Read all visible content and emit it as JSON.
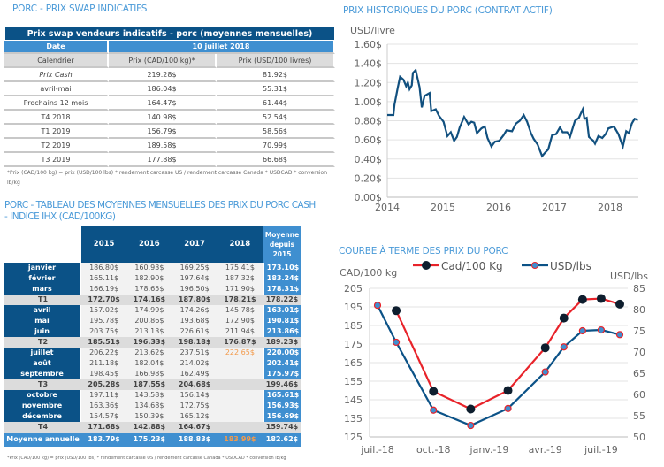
{
  "swap": {
    "heading": "PORC - PRIX SWAP INDICATIFS",
    "title": "Prix swap vendeurs indicatifs - porc (moyennes mensuelles)",
    "date_label": "Date",
    "date_value": "10 juillet 2018",
    "columns": [
      "Calendrier",
      "Prix (CAD/100 kg)*",
      "Prix (USD/100 livres)"
    ],
    "rows": [
      [
        "Prix Cash",
        "219.28$",
        "81.92$"
      ],
      [
        "avril-mai",
        "186.04$",
        "55.31$"
      ],
      [
        "Prochains 12 mois",
        "164.47$",
        "61.44$"
      ],
      [
        "T4 2018",
        "140.98$",
        "52.54$"
      ],
      [
        "T1 2019",
        "156.79$",
        "58.56$"
      ],
      [
        "T2 2019",
        "189.58$",
        "70.99$"
      ],
      [
        "T3 2019",
        "177.88$",
        "66.68$"
      ]
    ],
    "footnote": "*Prix (CAD/100 kg) = prix (USD/100 lbs) * rendement carcasse US / rendement carcasse Canada * USDCAD * conversion lb/kg"
  },
  "monthly": {
    "heading": "PORC - TABLEAU DES MOYENNES MENSUELLES DES PRIX DU PORC CASH - INDICE IHX (CAD/100KG)",
    "columns": [
      "2015",
      "2016",
      "2017",
      "2018",
      "Moyenne depuis 2015"
    ],
    "rows": [
      {
        "label": "janvier",
        "values": [
          "186.80$",
          "160.93$",
          "169.25$",
          "175.41$",
          "173.10$"
        ]
      },
      {
        "label": "février",
        "values": [
          "165.11$",
          "182.90$",
          "197.64$",
          "187.32$",
          "183.24$"
        ]
      },
      {
        "label": "mars",
        "values": [
          "166.19$",
          "178.65$",
          "196.50$",
          "171.90$",
          "178.31$"
        ]
      },
      {
        "label": "T1",
        "quarter": true,
        "values": [
          "172.70$",
          "174.16$",
          "187.80$",
          "178.21$",
          "178.22$"
        ]
      },
      {
        "label": "avril",
        "values": [
          "157.02$",
          "174.99$",
          "174.26$",
          "145.78$",
          "163.01$"
        ]
      },
      {
        "label": "mai",
        "values": [
          "195.78$",
          "200.86$",
          "193.68$",
          "172.90$",
          "190.81$"
        ]
      },
      {
        "label": "juin",
        "values": [
          "203.75$",
          "213.13$",
          "226.61$",
          "211.94$",
          "213.86$"
        ]
      },
      {
        "label": "T2",
        "quarter": true,
        "values": [
          "185.51$",
          "196.33$",
          "198.18$",
          "176.87$",
          "189.23$"
        ]
      },
      {
        "label": "juillet",
        "values": [
          "206.22$",
          "213.62$",
          "237.51$",
          "222.65$",
          "220.00$"
        ],
        "highlight": 3
      },
      {
        "label": "août",
        "values": [
          "211.18$",
          "182.04$",
          "214.02$",
          "",
          "202.41$"
        ]
      },
      {
        "label": "septembre",
        "values": [
          "198.45$",
          "166.98$",
          "162.49$",
          "",
          "175.97$"
        ]
      },
      {
        "label": "T3",
        "quarter": true,
        "values": [
          "205.28$",
          "187.55$",
          "204.68$",
          "",
          "199.46$"
        ]
      },
      {
        "label": "octobre",
        "values": [
          "197.11$",
          "143.58$",
          "156.14$",
          "",
          "165.61$"
        ]
      },
      {
        "label": "novembre",
        "values": [
          "163.36$",
          "134.68$",
          "172.75$",
          "",
          "156.93$"
        ]
      },
      {
        "label": "décembre",
        "values": [
          "154.57$",
          "150.39$",
          "165.12$",
          "",
          "156.69$"
        ]
      },
      {
        "label": "T4",
        "quarter": true,
        "values": [
          "171.68$",
          "142.88$",
          "164.67$",
          "",
          "159.74$"
        ]
      },
      {
        "label": "Moyenne annuelle",
        "annual": true,
        "values": [
          "183.79$",
          "175.23$",
          "188.83$",
          "183.99$",
          "182.62$"
        ],
        "highlight": 3
      }
    ],
    "footnote": "*Prix (CAD/100 kg) = prix (USD/100 lbs) * rendement carcasse US / rendement carcasse Canada * USDCAD * conversion lb/kg"
  },
  "colors": {
    "dark_blue": "#0b5287",
    "light_blue": "#3f8fd0",
    "orange": "#f39a4b",
    "red": "#e8232a"
  },
  "chart_data": [
    {
      "type": "line",
      "title": "PRIX HISTORIQUES DU PORC (CONTRAT ACTIF)",
      "ylabel": "USD/livre",
      "ylim": [
        0,
        1.6
      ],
      "xlim": [
        2014,
        2018.5
      ],
      "yticks": [
        "0.00$",
        "0.20$",
        "0.40$",
        "0.60$",
        "0.80$",
        "1.00$",
        "1.20$",
        "1.40$",
        "1.60$"
      ],
      "xticks": [
        "2014",
        "2015",
        "2016",
        "2017",
        "2018"
      ],
      "grid": true,
      "x": [
        2014.0,
        2014.11,
        2014.13,
        2014.19,
        2014.23,
        2014.29,
        2014.34,
        2014.37,
        2014.4,
        2014.44,
        2014.46,
        2014.51,
        2014.58,
        2014.62,
        2014.67,
        2014.76,
        2014.79,
        2014.87,
        2014.93,
        2015.01,
        2015.08,
        2015.14,
        2015.2,
        2015.25,
        2015.3,
        2015.38,
        2015.46,
        2015.51,
        2015.56,
        2015.61,
        2015.69,
        2015.75,
        2015.8,
        2015.87,
        2015.93,
        2016.01,
        2016.09,
        2016.14,
        2016.24,
        2016.31,
        2016.38,
        2016.45,
        2016.51,
        2016.58,
        2016.63,
        2016.7,
        2016.78,
        2016.84,
        2016.89,
        2016.96,
        2017.03,
        2017.1,
        2017.15,
        2017.23,
        2017.28,
        2017.37,
        2017.44,
        2017.51,
        2017.54,
        2017.58,
        2017.62,
        2017.7,
        2017.73,
        2017.79,
        2017.86,
        2017.92,
        2017.97,
        2018.07,
        2018.15,
        2018.23,
        2018.29,
        2018.34,
        2018.39,
        2018.44,
        2018.5
      ],
      "y": [
        0.86,
        0.86,
        0.97,
        1.15,
        1.26,
        1.23,
        1.16,
        1.2,
        1.13,
        1.17,
        1.3,
        1.33,
        1.15,
        0.94,
        1.06,
        1.09,
        0.9,
        0.92,
        0.85,
        0.79,
        0.64,
        0.68,
        0.59,
        0.63,
        0.73,
        0.84,
        0.76,
        0.79,
        0.78,
        0.67,
        0.72,
        0.74,
        0.62,
        0.53,
        0.58,
        0.59,
        0.65,
        0.7,
        0.69,
        0.77,
        0.8,
        0.86,
        0.79,
        0.67,
        0.61,
        0.55,
        0.43,
        0.47,
        0.5,
        0.65,
        0.66,
        0.73,
        0.68,
        0.68,
        0.63,
        0.8,
        0.83,
        0.92,
        0.82,
        0.83,
        0.63,
        0.59,
        0.56,
        0.64,
        0.62,
        0.66,
        0.72,
        0.74,
        0.66,
        0.53,
        0.69,
        0.67,
        0.77,
        0.82,
        0.81
      ]
    },
    {
      "type": "line",
      "title": "COURBE À TERME DES PRIX DU PORC",
      "ylabel_left": "CAD/100 kg",
      "ylabel_right": "USD/lbs",
      "ylim_left": [
        125,
        205
      ],
      "ylim_right": [
        50,
        85
      ],
      "yticks_left": [
        "125",
        "135",
        "145",
        "155",
        "165",
        "175",
        "185",
        "195",
        "205"
      ],
      "yticks_right": [
        "50",
        "55",
        "60",
        "65",
        "70",
        "75",
        "80",
        "85"
      ],
      "xticks": [
        "juil.-18",
        "oct.-18",
        "janv.-19",
        "avr.-19",
        "juil.-19"
      ],
      "legend": "top",
      "grid": true,
      "months": [
        "août-18",
        "oct.-18",
        "déc.-18",
        "févr.-19",
        "avr.-19",
        "mai-19",
        "juin-19",
        "juil.-19",
        "août-19"
      ],
      "series": [
        {
          "name": "Cad/100 Kg",
          "axis": "left",
          "color": "#e8232a",
          "x": [
            "août-18",
            "oct.-18",
            "déc.-18",
            "févr.-19",
            "avr.-19",
            "mai-19",
            "juin-19",
            "juil.-19",
            "août-19"
          ],
          "values": [
            193,
            149.5,
            140,
            150,
            173,
            189,
            199,
            199.5,
            196.5
          ]
        },
        {
          "name": "USD/lbs",
          "axis": "right",
          "color": "#0b5287",
          "x": [
            "juil.-18",
            "août-18",
            "oct.-18",
            "déc.-18",
            "févr.-19",
            "avr.-19",
            "mai-19",
            "juin-19",
            "juil.-19",
            "août-19"
          ],
          "values": [
            81,
            72.3,
            56.3,
            52.7,
            56.7,
            65.3,
            71.2,
            75,
            75.2,
            74.1
          ]
        }
      ]
    }
  ]
}
